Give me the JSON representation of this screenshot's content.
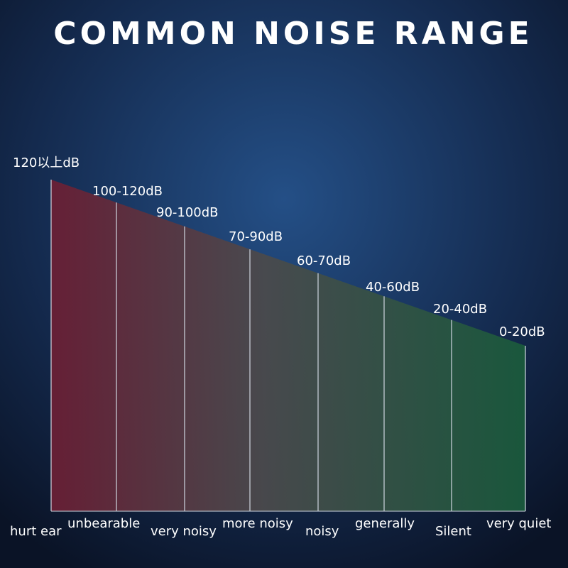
{
  "title": "COMMON NOISE RANGE",
  "levels": [
    {
      "range": "120以上dB",
      "description": "hurt ear"
    },
    {
      "range": "100-120dB",
      "description": "unbearable"
    },
    {
      "range": "90-100dB",
      "description": "very noisy"
    },
    {
      "range": "70-90dB",
      "description": "more noisy"
    },
    {
      "range": "60-70dB",
      "description": "noisy"
    },
    {
      "range": "40-60dB",
      "description": "generally"
    },
    {
      "range": "20-40dB",
      "description": "Silent"
    },
    {
      "range": "0-20dB",
      "description": "very quiet"
    }
  ]
}
